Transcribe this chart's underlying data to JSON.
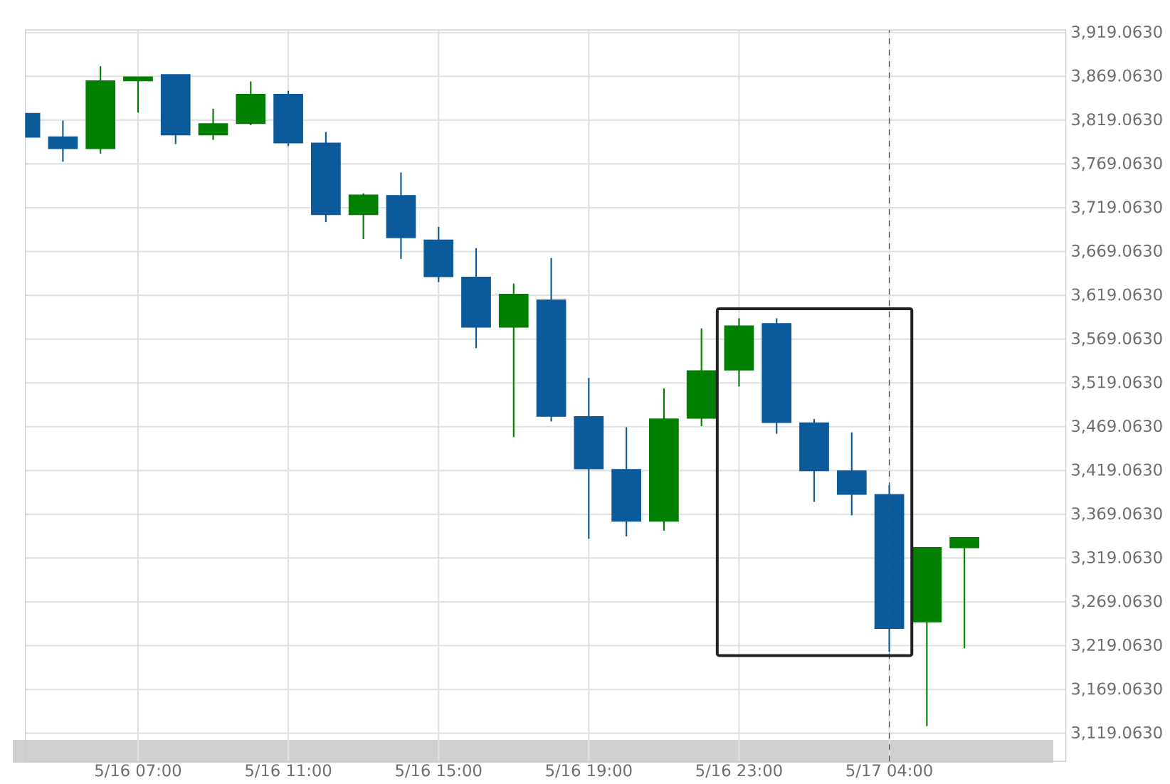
{
  "chart_data": {
    "type": "candlestick",
    "categories": [
      null,
      null,
      null,
      "5/16 07:00",
      null,
      null,
      null,
      "5/16 11:00",
      null,
      null,
      null,
      "5/16 15:00",
      null,
      null,
      null,
      "5/16 19:00",
      null,
      null,
      null,
      "5/16 23:00",
      null,
      null,
      null,
      "5/17 04:00",
      null,
      null
    ],
    "ohlc": [
      [
        3826.6,
        3826.6,
        3799.8,
        3799.8
      ],
      [
        3799.8,
        3818.5,
        3771.6,
        3786.8
      ],
      [
        3786.8,
        3880.6,
        3780.8,
        3863.8
      ],
      [
        3864.1,
        3868.2,
        3827.7,
        3868.2
      ],
      [
        3870.9,
        3870.9,
        3791.7,
        3802.4
      ],
      [
        3802.4,
        3832.1,
        3796.5,
        3814.8
      ],
      [
        3815.3,
        3863.3,
        3813.2,
        3848.3
      ],
      [
        3848.3,
        3852.5,
        3789.4,
        3793.3
      ],
      [
        3792.7,
        3805.6,
        3702.7,
        3711.3
      ],
      [
        3711.3,
        3735.5,
        3683.3,
        3733.4
      ],
      [
        3732.8,
        3759.3,
        3660.6,
        3684.9
      ],
      [
        3682.1,
        3697.2,
        3634.1,
        3640.5
      ],
      [
        3639.6,
        3672.9,
        3558.7,
        3582.9
      ],
      [
        3582.9,
        3632.5,
        3457.2,
        3620.2
      ],
      [
        3613.7,
        3661.6,
        3475.0,
        3481.0
      ],
      [
        3480.4,
        3524.7,
        3341.2,
        3421.1
      ],
      [
        3420.0,
        3468.5,
        3343.9,
        3361.3
      ],
      [
        3361.3,
        3512.7,
        3350.4,
        3477.8
      ],
      [
        3478.8,
        3581.3,
        3469.7,
        3532.8
      ],
      [
        3533.8,
        3592.8,
        3515.0,
        3583.9
      ],
      [
        3586.7,
        3592.8,
        3461.0,
        3473.9
      ],
      [
        3473.4,
        3477.8,
        3383.3,
        3418.9
      ],
      [
        3418.4,
        3462.6,
        3367.8,
        3392.0
      ],
      [
        3391.4,
        3402.2,
        3211.8,
        3238.8
      ],
      [
        3246.4,
        3331.0,
        3127.2,
        3331.0
      ],
      [
        3331.0,
        3342.3,
        3216.1,
        3342.3
      ]
    ],
    "colors": [
      "#0b5a9c",
      "#0b5a9c",
      "#007f00",
      "#007f00",
      "#0b5a9c",
      "#007f00",
      "#007f00",
      "#0b5a9c",
      "#0b5a9c",
      "#007f00",
      "#0b5a9c",
      "#0b5a9c",
      "#0b5a9c",
      "#007f00",
      "#0b5a9c",
      "#0b5a9c",
      "#0b5a9c",
      "#007f00",
      "#007f00",
      "#007f00",
      "#0b5a9c",
      "#0b5a9c",
      "#0b5a9c",
      "#0b5a9c",
      "#007f00",
      "#007f00"
    ],
    "ylim": [
      3087,
      3922
    ],
    "yticks": [
      {
        "value": 3119.063,
        "label": "3,119.0630"
      },
      {
        "value": 3169.063,
        "label": "3,169.0630"
      },
      {
        "value": 3219.063,
        "label": "3,219.0630"
      },
      {
        "value": 3269.063,
        "label": "3,269.0630"
      },
      {
        "value": 3319.063,
        "label": "3,319.0630"
      },
      {
        "value": 3369.063,
        "label": "3,369.0630"
      },
      {
        "value": 3419.063,
        "label": "3,419.0630"
      },
      {
        "value": 3469.063,
        "label": "3,469.0630"
      },
      {
        "value": 3519.063,
        "label": "3,519.0630"
      },
      {
        "value": 3569.063,
        "label": "3,569.0630"
      },
      {
        "value": 3619.063,
        "label": "3,619.0630"
      },
      {
        "value": 3669.063,
        "label": "3,669.0630"
      },
      {
        "value": 3719.063,
        "label": "3,719.0630"
      },
      {
        "value": 3769.063,
        "label": "3,769.0630"
      },
      {
        "value": 3819.063,
        "label": "3,819.0630"
      },
      {
        "value": 3869.063,
        "label": "3,869.0630"
      },
      {
        "value": 3919.063,
        "label": "3,919.0630"
      }
    ],
    "grid": true,
    "ref_lines": [
      {
        "axis": "x",
        "value": "5/17 04:00",
        "color": "#555555",
        "line_style": "dashed"
      }
    ]
  }
}
